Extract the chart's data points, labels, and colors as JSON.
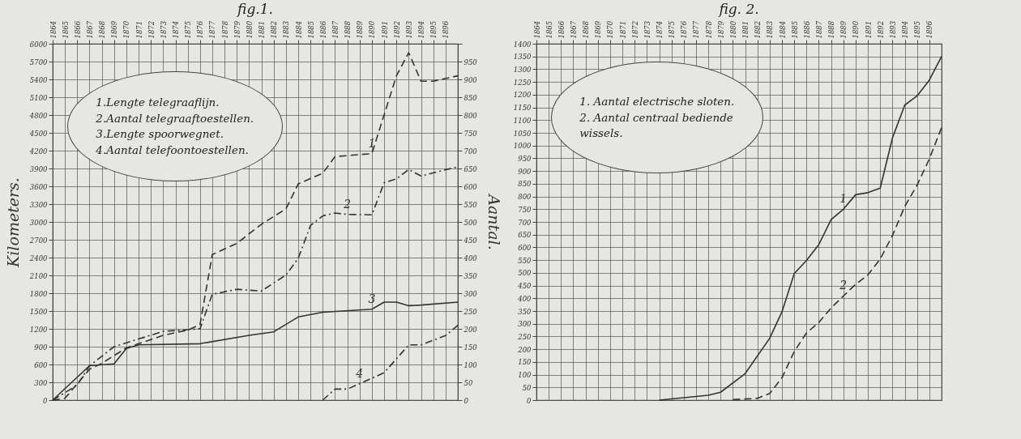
{
  "chart_data": [
    {
      "type": "line",
      "title": "fig.1.",
      "ylabel": "Kilometers.",
      "y2label": "Aantal.",
      "xlim": [
        1864,
        1897
      ],
      "xticks": [
        1864,
        1865,
        1866,
        1867,
        1868,
        1869,
        1870,
        1871,
        1872,
        1873,
        1874,
        1875,
        1876,
        1877,
        1878,
        1879,
        1880,
        1881,
        1882,
        1883,
        1884,
        1885,
        1886,
        1887,
        1888,
        1889,
        1890,
        1891,
        1892,
        1893,
        1894,
        1895,
        1896
      ],
      "ylim": [
        0,
        6000
      ],
      "yticks": [
        0,
        300,
        600,
        900,
        1200,
        1500,
        1800,
        2100,
        2400,
        2700,
        3000,
        3300,
        3600,
        3900,
        4200,
        4500,
        4800,
        5100,
        5400,
        5700,
        6000
      ],
      "y2lim": [
        0,
        1000
      ],
      "y2ticks": [
        0,
        50,
        100,
        150,
        200,
        250,
        300,
        350,
        400,
        450,
        500,
        550,
        600,
        650,
        700,
        750,
        800,
        850,
        900,
        950,
        {
          "value": 1000,
          "label": null
        }
      ],
      "grid": true,
      "series": [
        {
          "name": "1",
          "color": "#333333",
          "line_style": "dashed",
          "x": [
            1864,
            1865,
            1867,
            1868,
            1869,
            1870,
            1871,
            1872,
            1873,
            1875,
            1876,
            1877,
            1879,
            1881,
            1883,
            1884,
            1886,
            1887,
            1890,
            1892,
            1893,
            1894,
            1895,
            1897
          ],
          "values": [
            0,
            30,
            520,
            620,
            750,
            880,
            950,
            1020,
            1090,
            1180,
            1270,
            2450,
            2640,
            2960,
            3220,
            3640,
            3820,
            4100,
            4150,
            5460,
            5850,
            5370,
            5370,
            5460
          ]
        },
        {
          "name": "2",
          "color": "#333333",
          "line_style": "dashdot",
          "axis": "y2",
          "x": [
            1864,
            1866,
            1867,
            1869,
            1873,
            1876,
            1877,
            1879,
            1881,
            1883,
            1884,
            1885,
            1886,
            1887,
            1888,
            1890,
            1891,
            1892,
            1893,
            1894,
            1897
          ],
          "values": [
            0,
            42,
            96,
            150,
            193,
            200,
            297,
            311,
            306,
            351,
            398,
            490,
            517,
            525,
            521,
            520,
            610,
            621,
            647,
            629,
            655
          ]
        },
        {
          "name": "3",
          "color": "#333333",
          "line_style": "solid",
          "x": [
            1864,
            1867,
            1869,
            1870,
            1871,
            1876,
            1880,
            1882,
            1884,
            1886,
            1890,
            1891,
            1892,
            1893,
            1894,
            1897
          ],
          "values": [
            0,
            580,
            610,
            870,
            930,
            950,
            1090,
            1150,
            1400,
            1480,
            1530,
            1650,
            1650,
            1590,
            1600,
            1650
          ]
        },
        {
          "name": "4",
          "color": "#333333",
          "line_style": "dashdot",
          "axis": "y2",
          "x": [
            1886,
            1887,
            1888,
            1889,
            1891,
            1893,
            1894,
            1896,
            1897
          ],
          "values": [
            0,
            31,
            31,
            46,
            77,
            155,
            155,
            181,
            210
          ]
        }
      ],
      "annotations": [
        "1.Lengte telegraaflijn.",
        "2.Aantal telegraaftoestellen.",
        "3.Lengte spoorwegnet.",
        "4.Aantal telefoontoestellen."
      ]
    },
    {
      "type": "line",
      "title": "fig. 2.",
      "xlim": [
        1864,
        1897
      ],
      "xticks": [
        1864,
        1865,
        1866,
        1867,
        1868,
        1869,
        1870,
        1871,
        1872,
        1873,
        1874,
        1875,
        1876,
        1877,
        1878,
        1879,
        1880,
        1881,
        1882,
        1883,
        1884,
        1885,
        1886,
        1887,
        1888,
        1889,
        1890,
        1891,
        1892,
        1893,
        1894,
        1895,
        1896
      ],
      "ylim": [
        0,
        1400
      ],
      "yticks": [
        0,
        50,
        100,
        150,
        200,
        250,
        300,
        350,
        400,
        450,
        500,
        550,
        600,
        650,
        700,
        750,
        800,
        850,
        900,
        950,
        1000,
        1050,
        1100,
        1150,
        1200,
        1250,
        1300,
        1350,
        1400
      ],
      "grid": true,
      "series": [
        {
          "name": "1",
          "color": "#333333",
          "line_style": "solid",
          "x": [
            1874,
            1878,
            1879,
            1881,
            1883,
            1884,
            1885,
            1886,
            1887,
            1888,
            1889,
            1890,
            1891,
            1892,
            1893,
            1894,
            1895,
            1896,
            1897
          ],
          "values": [
            0,
            19,
            31,
            104,
            243,
            347,
            497,
            549,
            611,
            709,
            750,
            807,
            815,
            833,
            1030,
            1159,
            1195,
            1257,
            1350
          ]
        },
        {
          "name": "2",
          "color": "#333333",
          "line_style": "dashed",
          "x": [
            1880,
            1882,
            1883,
            1884,
            1885,
            1886,
            1887,
            1888,
            1889,
            1890,
            1891,
            1892,
            1893,
            1894,
            1895,
            1896,
            1897
          ],
          "values": [
            2,
            7,
            26,
            88,
            191,
            264,
            305,
            362,
            409,
            455,
            492,
            554,
            647,
            761,
            844,
            947,
            1071
          ]
        }
      ],
      "annotations": [
        "1. Aantal electrische sloten.",
        "2. Aantal centraal bediende wissels."
      ]
    }
  ]
}
